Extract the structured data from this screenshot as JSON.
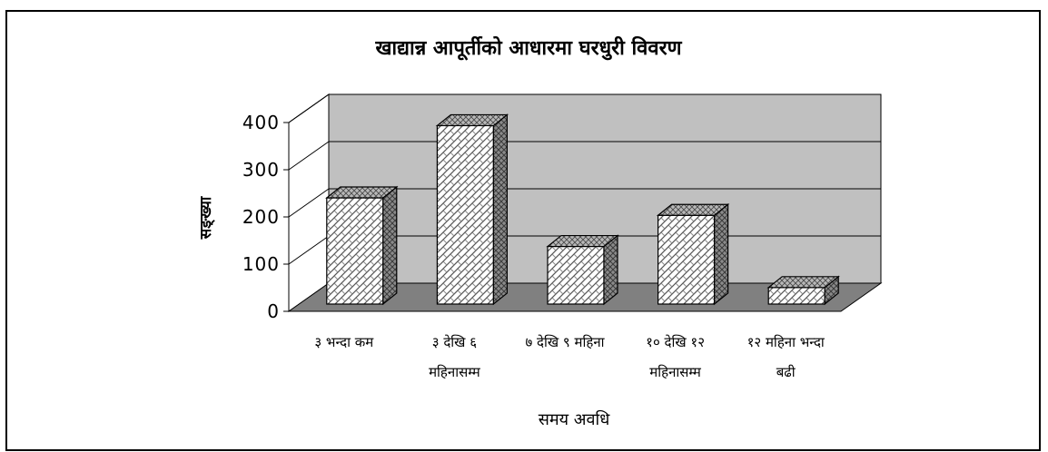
{
  "chart_data": {
    "type": "bar",
    "title": "खाद्यान्न आपूर्तीको आधारमा घरधुरी विवरण",
    "xlabel": "समय अवधि",
    "ylabel": "सङ्ख्या",
    "categories": [
      [
        "३ भन्दा कम"
      ],
      [
        "३ देखि ६",
        "महिनासम्म"
      ],
      [
        "७ देखि ९ महिना"
      ],
      [
        "१० देखि १२",
        "महिनासम्म"
      ],
      [
        "१२ महिना भन्दा",
        "बढी"
      ]
    ],
    "values": [
      225,
      378,
      122,
      188,
      35
    ],
    "ylim": [
      0,
      400
    ],
    "yticks": [
      0,
      100,
      200,
      300,
      400
    ],
    "grid": true,
    "legend": "none",
    "style": "3d-bar-hatched"
  }
}
